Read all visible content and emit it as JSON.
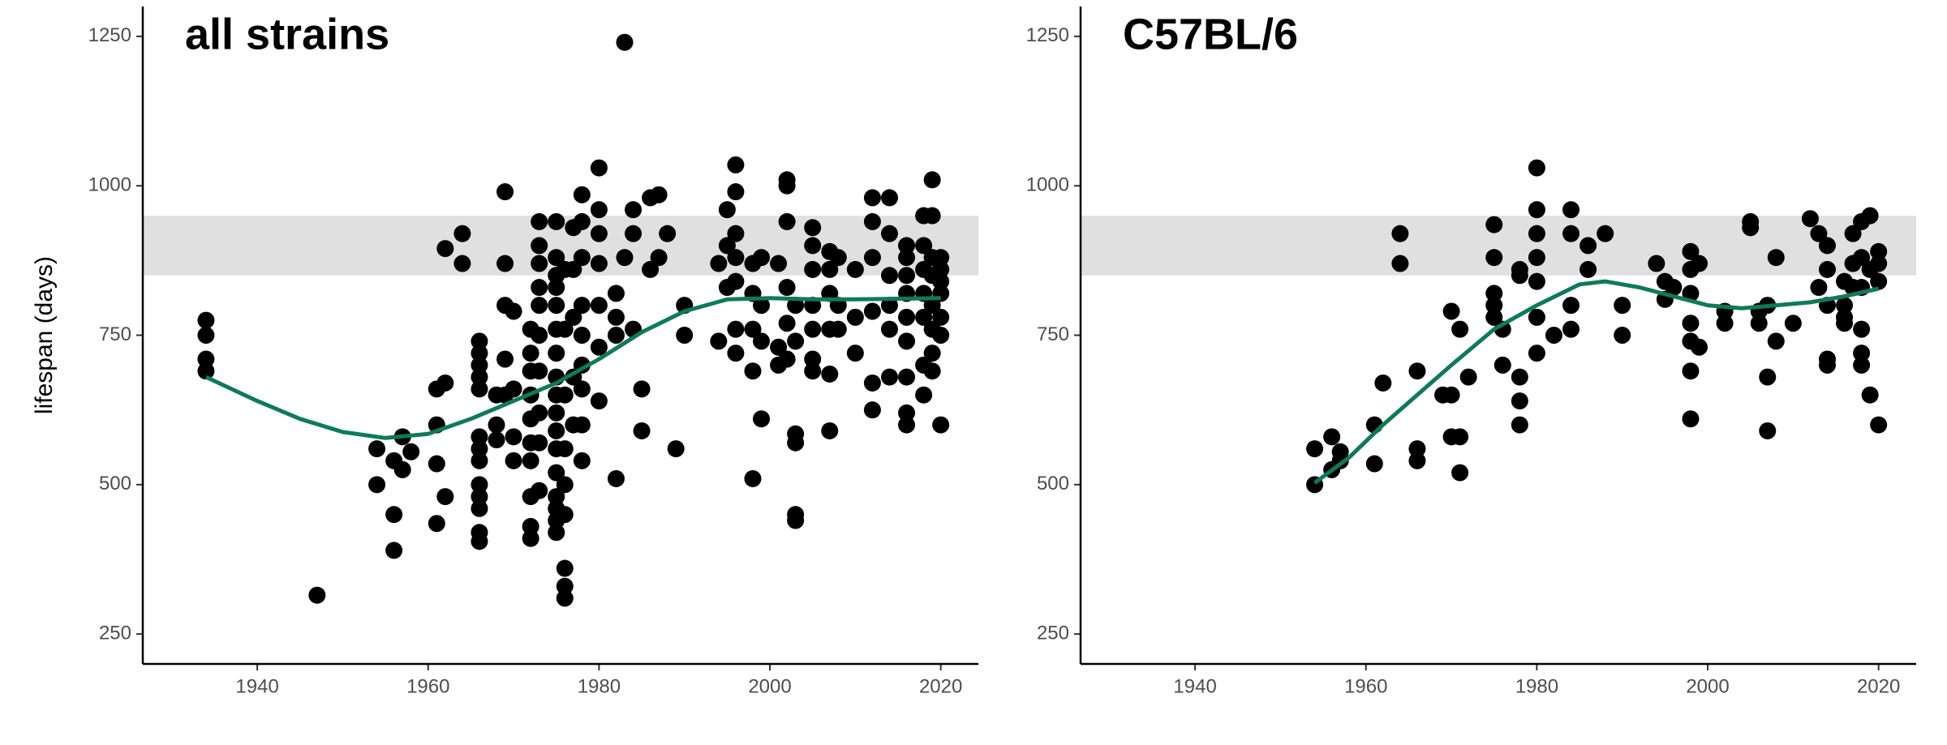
{
  "chart_data": [
    {
      "type": "scatter",
      "title": "all strains",
      "y_label": "lifespan (days)",
      "xlim": [
        1926.6,
        2024.4
      ],
      "ylim": [
        200,
        1300
      ],
      "xticks": [
        1940,
        1960,
        1980,
        2000,
        2020
      ],
      "yticks": [
        250,
        500,
        750,
        1000,
        1250
      ],
      "band": [
        850,
        950
      ],
      "color": "#000000",
      "smooth_color": "#0e7a5b",
      "x": [
        1934,
        1934,
        1934,
        1934,
        1947,
        1954,
        1954,
        1956,
        1956,
        1956,
        1957,
        1957,
        1958,
        1961,
        1961,
        1961,
        1961,
        1962,
        1962,
        1962,
        1964,
        1964,
        1966,
        1966,
        1966,
        1966,
        1966,
        1966,
        1966,
        1966,
        1966,
        1966,
        1966,
        1966,
        1966,
        1968,
        1968,
        1968,
        1969,
        1969,
        1969,
        1969,
        1969,
        1970,
        1970,
        1970,
        1970,
        1972,
        1972,
        1972,
        1972,
        1972,
        1972,
        1972,
        1972,
        1972,
        1972,
        1973,
        1973,
        1973,
        1973,
        1973,
        1973,
        1973,
        1973,
        1973,
        1973,
        1975,
        1975,
        1975,
        1975,
        1975,
        1975,
        1975,
        1975,
        1975,
        1975,
        1975,
        1975,
        1975,
        1975,
        1975,
        1975,
        1975,
        1976,
        1976,
        1976,
        1976,
        1976,
        1976,
        1976,
        1976,
        1976,
        1977,
        1977,
        1977,
        1977,
        1977,
        1978,
        1978,
        1978,
        1978,
        1978,
        1978,
        1978,
        1978,
        1978,
        1980,
        1980,
        1980,
        1980,
        1980,
        1980,
        1980,
        1982,
        1982,
        1982,
        1982,
        1983,
        1983,
        1984,
        1984,
        1984,
        1985,
        1985,
        1986,
        1986,
        1987,
        1987,
        1988,
        1989,
        1990,
        1990,
        1994,
        1994,
        1995,
        1995,
        1995,
        1996,
        1996,
        1996,
        1996,
        1996,
        1996,
        1996,
        1998,
        1998,
        1998,
        1998,
        1998,
        1999,
        1999,
        1999,
        1999,
        2001,
        2001,
        2001,
        2002,
        2002,
        2002,
        2002,
        2002,
        2002,
        2003,
        2003,
        2003,
        2003,
        2003,
        2003,
        2005,
        2005,
        2005,
        2005,
        2005,
        2005,
        2005,
        2007,
        2007,
        2007,
        2007,
        2007,
        2007,
        2008,
        2008,
        2008,
        2010,
        2010,
        2010,
        2012,
        2012,
        2012,
        2012,
        2012,
        2012,
        2014,
        2014,
        2014,
        2014,
        2014,
        2014,
        2016,
        2016,
        2016,
        2016,
        2016,
        2016,
        2016,
        2016,
        2016,
        2018,
        2018,
        2018,
        2018,
        2018,
        2018,
        2018,
        2019,
        2019,
        2019,
        2019,
        2019,
        2019,
        2019,
        2019,
        2020,
        2020,
        2020,
        2020,
        2020,
        2020,
        2020
      ],
      "values": [
        775,
        750,
        710,
        690,
        315,
        560,
        500,
        450,
        390,
        540,
        580,
        525,
        555,
        660,
        600,
        535,
        435,
        895,
        670,
        480,
        920,
        870,
        740,
        720,
        700,
        680,
        660,
        580,
        560,
        540,
        500,
        480,
        460,
        420,
        405,
        650,
        600,
        575,
        990,
        870,
        800,
        710,
        650,
        790,
        660,
        580,
        540,
        760,
        720,
        690,
        650,
        610,
        570,
        540,
        480,
        430,
        410,
        940,
        900,
        870,
        830,
        800,
        750,
        690,
        620,
        570,
        490,
        940,
        880,
        850,
        830,
        800,
        760,
        720,
        680,
        650,
        620,
        590,
        560,
        520,
        480,
        460,
        440,
        420,
        860,
        760,
        650,
        560,
        500,
        450,
        360,
        330,
        310,
        930,
        860,
        780,
        680,
        600,
        985,
        940,
        880,
        800,
        750,
        700,
        660,
        600,
        540,
        1030,
        960,
        920,
        870,
        800,
        730,
        640,
        820,
        780,
        750,
        510,
        1240,
        880,
        960,
        920,
        760,
        660,
        590,
        980,
        860,
        985,
        880,
        920,
        560,
        800,
        750,
        870,
        740,
        960,
        900,
        830,
        1035,
        990,
        920,
        880,
        840,
        760,
        720,
        870,
        820,
        760,
        690,
        510,
        880,
        800,
        740,
        610,
        870,
        730,
        700,
        1010,
        1000,
        940,
        830,
        770,
        710,
        800,
        740,
        585,
        570,
        450,
        440,
        930,
        900,
        860,
        800,
        760,
        710,
        690,
        890,
        860,
        820,
        760,
        685,
        590,
        880,
        800,
        760,
        860,
        780,
        720,
        980,
        940,
        880,
        790,
        670,
        625,
        980,
        920,
        850,
        800,
        760,
        680,
        900,
        880,
        850,
        820,
        780,
        740,
        680,
        620,
        600,
        950,
        900,
        860,
        820,
        780,
        700,
        650,
        1010,
        950,
        880,
        850,
        800,
        760,
        720,
        690,
        880,
        860,
        840,
        820,
        780,
        750,
        600
      ],
      "smooth_x": [
        1934,
        1940,
        1945,
        1950,
        1955,
        1960,
        1965,
        1970,
        1975,
        1980,
        1985,
        1990,
        1995,
        2000,
        2005,
        2010,
        2015,
        2020
      ],
      "smooth_values": [
        680,
        640,
        610,
        588,
        578,
        585,
        610,
        640,
        670,
        710,
        755,
        790,
        810,
        812,
        810,
        810,
        811,
        812
      ]
    },
    {
      "type": "scatter",
      "title": "C57BL/6",
      "xlim": [
        1926.6,
        2024.4
      ],
      "ylim": [
        200,
        1300
      ],
      "xticks": [
        1940,
        1960,
        1980,
        2000,
        2020
      ],
      "yticks": [
        250,
        500,
        750,
        1000,
        1250
      ],
      "band": [
        850,
        950
      ],
      "color": "#000000",
      "smooth_color": "#0e7a5b",
      "x": [
        1954,
        1954,
        1956,
        1956,
        1957,
        1957,
        1961,
        1961,
        1962,
        1964,
        1964,
        1966,
        1966,
        1966,
        1969,
        1970,
        1970,
        1970,
        1971,
        1971,
        1971,
        1972,
        1975,
        1975,
        1975,
        1975,
        1975,
        1976,
        1976,
        1978,
        1978,
        1978,
        1978,
        1978,
        1980,
        1980,
        1980,
        1980,
        1980,
        1980,
        1980,
        1982,
        1984,
        1984,
        1984,
        1984,
        1986,
        1986,
        1988,
        1990,
        1990,
        1994,
        1995,
        1995,
        1996,
        1998,
        1998,
        1998,
        1998,
        1998,
        1998,
        1998,
        1999,
        1999,
        2002,
        2002,
        2005,
        2005,
        2006,
        2006,
        2007,
        2007,
        2007,
        2008,
        2008,
        2010,
        2012,
        2013,
        2013,
        2014,
        2014,
        2014,
        2014,
        2014,
        2016,
        2016,
        2016,
        2016,
        2017,
        2017,
        2017,
        2018,
        2018,
        2018,
        2018,
        2018,
        2018,
        2019,
        2019,
        2019,
        2020,
        2020,
        2020,
        2020
      ],
      "values": [
        560,
        500,
        580,
        525,
        555,
        540,
        600,
        535,
        670,
        920,
        870,
        690,
        560,
        540,
        650,
        790,
        650,
        580,
        760,
        580,
        520,
        680,
        935,
        880,
        820,
        800,
        780,
        760,
        700,
        860,
        850,
        680,
        640,
        600,
        1030,
        960,
        920,
        880,
        840,
        780,
        720,
        750,
        960,
        920,
        800,
        760,
        900,
        860,
        920,
        800,
        750,
        870,
        840,
        810,
        830,
        890,
        860,
        820,
        770,
        740,
        690,
        610,
        870,
        730,
        790,
        770,
        940,
        930,
        790,
        770,
        800,
        680,
        590,
        880,
        740,
        770,
        945,
        920,
        830,
        900,
        860,
        800,
        710,
        700,
        840,
        800,
        780,
        770,
        920,
        870,
        830,
        940,
        880,
        830,
        760,
        720,
        700,
        950,
        860,
        650,
        890,
        870,
        840,
        600
      ],
      "smooth_x": [
        1954,
        1958,
        1962,
        1966,
        1970,
        1975,
        1980,
        1985,
        1988,
        1992,
        1996,
        2000,
        2004,
        2008,
        2012,
        2016,
        2020
      ],
      "smooth_values": [
        503,
        545,
        600,
        650,
        700,
        760,
        800,
        835,
        840,
        830,
        815,
        800,
        795,
        800,
        805,
        815,
        828
      ]
    }
  ]
}
